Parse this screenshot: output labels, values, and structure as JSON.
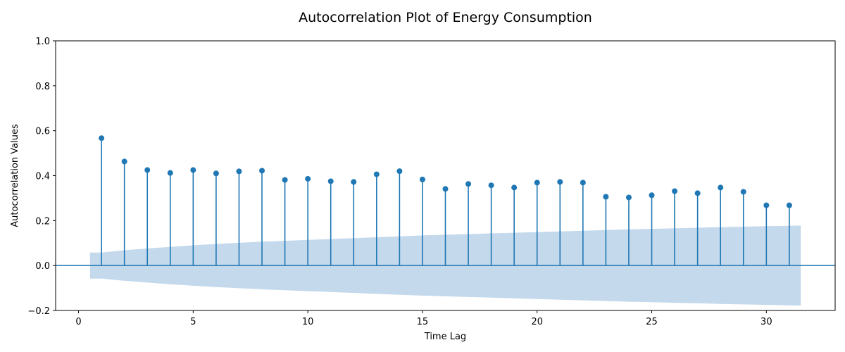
{
  "chart_data": {
    "type": "stem",
    "title": "Autocorrelation Plot of Energy Consumption",
    "xlabel": "Time Lag",
    "ylabel": "Autocorrelation Values",
    "xlim": [
      -1,
      33
    ],
    "ylim": [
      -0.2,
      1.0
    ],
    "x_ticks": [
      0,
      5,
      10,
      15,
      20,
      25,
      30
    ],
    "x_tick_labels": [
      "0",
      "5",
      "10",
      "15",
      "20",
      "25",
      "30"
    ],
    "y_ticks": [
      -0.2,
      0.0,
      0.2,
      0.4,
      0.6,
      0.8,
      1.0
    ],
    "y_tick_labels": [
      "−0.2",
      "0.0",
      "0.2",
      "0.4",
      "0.6",
      "0.8",
      "1.0"
    ],
    "grid": false,
    "series": [
      {
        "x": [
          1,
          2,
          3,
          4,
          5,
          6,
          7,
          8,
          9,
          10,
          11,
          12,
          13,
          14,
          15,
          16,
          17,
          18,
          19,
          20,
          21,
          22,
          23,
          24,
          25,
          26,
          27,
          28,
          29,
          30,
          31
        ],
        "values": [
          0.567,
          0.463,
          0.425,
          0.412,
          0.425,
          0.41,
          0.419,
          0.422,
          0.381,
          0.386,
          0.375,
          0.372,
          0.406,
          0.42,
          0.383,
          0.341,
          0.363,
          0.357,
          0.347,
          0.369,
          0.372,
          0.369,
          0.306,
          0.303,
          0.313,
          0.331,
          0.322,
          0.347,
          0.328,
          0.268,
          0.268
        ]
      }
    ],
    "confidence_band": {
      "x": [
        0.5,
        1,
        2,
        3,
        4,
        5,
        6,
        7,
        8,
        9,
        10,
        11,
        12,
        13,
        14,
        15,
        16,
        17,
        18,
        19,
        20,
        21,
        22,
        23,
        24,
        25,
        26,
        27,
        28,
        29,
        30,
        31,
        31.5
      ],
      "upper": [
        0.058,
        0.058,
        0.068,
        0.076,
        0.083,
        0.09,
        0.096,
        0.101,
        0.106,
        0.11,
        0.114,
        0.118,
        0.122,
        0.126,
        0.13,
        0.134,
        0.137,
        0.14,
        0.143,
        0.146,
        0.149,
        0.152,
        0.155,
        0.158,
        0.161,
        0.163,
        0.166,
        0.168,
        0.171,
        0.173,
        0.175,
        0.177,
        0.178
      ]
    },
    "colors": {
      "stem": "#1f77b4",
      "band": "#c4d9ec",
      "baseline": "#1f77b4"
    }
  }
}
